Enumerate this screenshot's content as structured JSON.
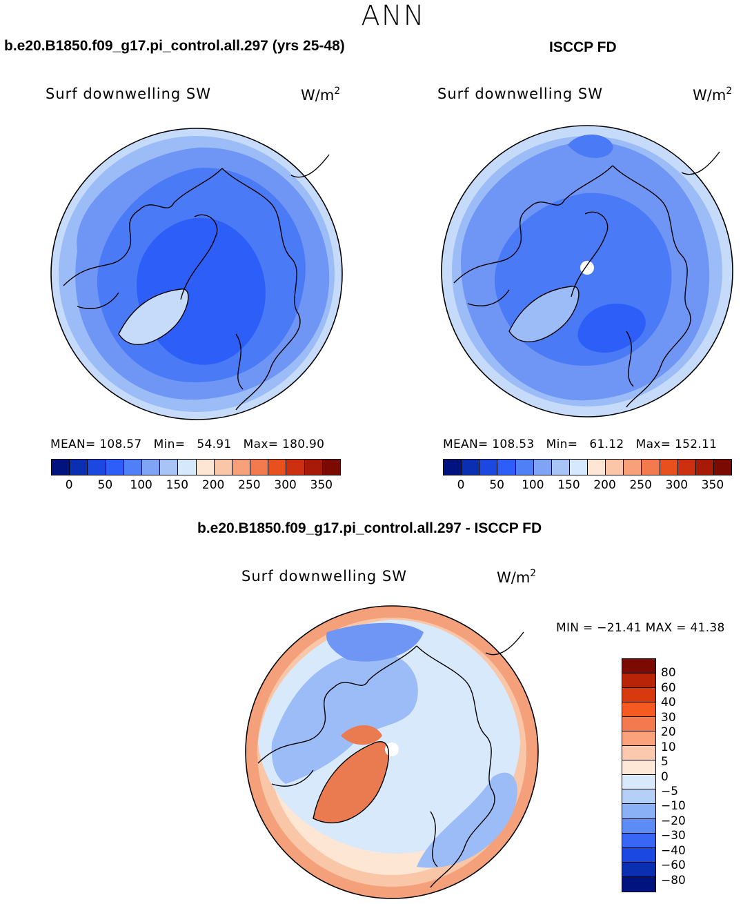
{
  "title": "ANN",
  "panels": [
    {
      "case": "b.e20.B1850.f09_g17.pi_control.all.297 (yrs 25-48)",
      "variable": "Surf downwelling SW",
      "units": "W/m",
      "units_sup": "2",
      "stats": {
        "mean_label": "MEAN=",
        "mean": "108.57",
        "min_label": "Min=",
        "min": "54.91",
        "max_label": "Max=",
        "max": "180.90"
      },
      "pole_hole": false
    },
    {
      "case": "ISCCP FD",
      "variable": "Surf downwelling SW",
      "units": "W/m",
      "units_sup": "2",
      "stats": {
        "mean_label": "MEAN=",
        "mean": "108.53",
        "min_label": "Min=",
        "min": "61.12",
        "max_label": "Max=",
        "max": "152.11"
      },
      "pole_hole": true
    }
  ],
  "colorbar_top": {
    "colors": [
      "#00137f",
      "#0a2fb0",
      "#1a48e0",
      "#2e5ef8",
      "#5080f5",
      "#80a4f5",
      "#a8c4f7",
      "#d6e8fb",
      "#fde6d4",
      "#fbc5a8",
      "#f7a07a",
      "#f27a4e",
      "#e8501e",
      "#cc3010",
      "#a81a08",
      "#7a0a02"
    ],
    "ticks": [
      "0",
      "50",
      "100",
      "150",
      "200",
      "250",
      "300",
      "350"
    ]
  },
  "difference": {
    "title": "b.e20.B1850.f09_g17.pi_control.all.297 - ISCCP FD",
    "variable": "Surf downwelling SW",
    "units": "W/m",
    "units_sup": "2",
    "minmax": "MIN = −21.41 MAX =  41.38",
    "colorbar": {
      "colors": [
        "#7a0a02",
        "#b82408",
        "#d83a10",
        "#f55a20",
        "#f27a4e",
        "#f9a27c",
        "#fbc9ad",
        "#fde8d8",
        "#d8e9fb",
        "#b5d0f7",
        "#8ab0f5",
        "#5e8cf5",
        "#3866f5",
        "#1a48e0",
        "#0a2fb0",
        "#00137f"
      ],
      "ticks": [
        "80",
        "60",
        "40",
        "30",
        "20",
        "10",
        "5",
        "0",
        "−5",
        "−10",
        "−20",
        "−30",
        "−40",
        "−60",
        "−80"
      ]
    }
  },
  "map_colors": {
    "deep": "#2e5ef8",
    "dark": "#4a7af5",
    "mid": "#6f95f5",
    "light": "#9bbcf7",
    "pale": "#c5dbf9",
    "warm_pale": "#fde6d4",
    "warm_light": "#f9c6a8",
    "warm_mid": "#f4a07a",
    "warm_dark": "#ea7a50",
    "cold_pale": "#d8e9fb"
  }
}
